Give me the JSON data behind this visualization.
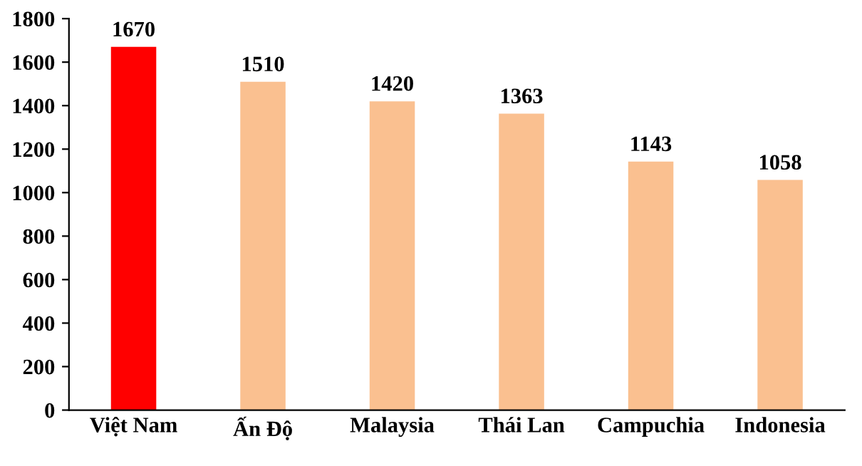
{
  "chart_data": {
    "type": "bar",
    "categories": [
      "Việt Nam",
      "Ấn Độ",
      "Malaysia",
      "Thái Lan",
      "Campuchia",
      "Indonesia"
    ],
    "values": [
      1670,
      1510,
      1420,
      1363,
      1143,
      1058
    ],
    "colors": [
      "#ff0000",
      "#fac090",
      "#fac090",
      "#fac090",
      "#fac090",
      "#fac090"
    ],
    "ylim": [
      0,
      1800
    ],
    "yticks": [
      0,
      200,
      400,
      600,
      800,
      1000,
      1200,
      1400,
      1600,
      1800
    ],
    "grid": false,
    "data_labels": true
  }
}
